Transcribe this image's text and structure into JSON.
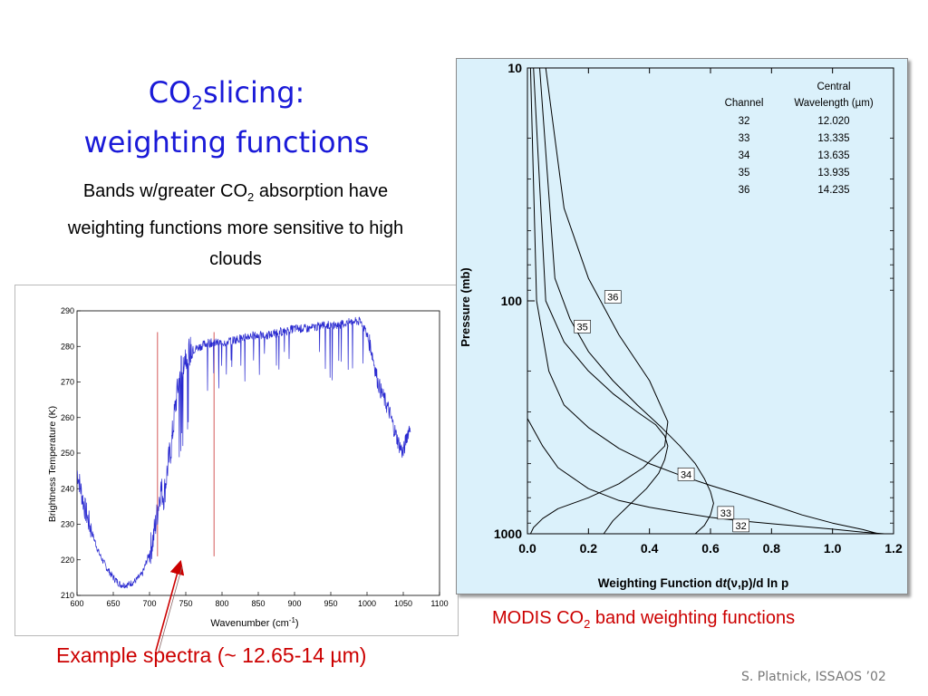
{
  "slide": {
    "title_line1_a": "CO",
    "title_line1_sub": "2",
    "title_line1_b": "slicing:",
    "title_line2": "weighting functions",
    "blurb_a": "Bands w/greater CO",
    "blurb_sub": "2",
    "blurb_b": " absorption have weighting functions more sensitive to high clouds",
    "caption_right_a": "MODIS CO",
    "caption_right_sub": "2",
    "caption_right_b": " band weighting functions",
    "caption_left": "Example spectra (~ 12.65-14 µm)",
    "credit": "S. Platnick, ISSAOS ’02",
    "colors": {
      "title": "#1a1ad8",
      "caption": "#cc0000",
      "spectrum": "#2a2ad0",
      "marker": "#d45a5a",
      "panel_bg": "#dbf1fb"
    }
  },
  "chart_data": [
    {
      "type": "line",
      "title": "",
      "xlabel": "Wavenumber (cm",
      "xlabel_sup": "-1",
      "xlabel_end": ")",
      "ylabel": "Brightness Temperature (K)",
      "xlim": [
        600,
        1100
      ],
      "ylim": [
        210,
        290
      ],
      "x_ticks": [
        600,
        650,
        700,
        750,
        800,
        850,
        900,
        950,
        1000,
        1050,
        1100
      ],
      "y_ticks": [
        210,
        220,
        230,
        240,
        250,
        260,
        270,
        280,
        290
      ],
      "grid": false,
      "series": [
        {
          "x": [
            600,
            605,
            610,
            620,
            630,
            640,
            650,
            660,
            670,
            680,
            690,
            700,
            705,
            710,
            715,
            720,
            725,
            730,
            735,
            740,
            745,
            750,
            760,
            770,
            780,
            800,
            820,
            840,
            860,
            880,
            900,
            920,
            940,
            960,
            980,
            990,
            995,
            1000,
            1005,
            1010,
            1015,
            1020,
            1030,
            1040,
            1045,
            1050,
            1055,
            1060
          ],
          "y": [
            245,
            240,
            235,
            228,
            222,
            218,
            215,
            213,
            213,
            214,
            216,
            222,
            226,
            232,
            240,
            238,
            246,
            252,
            262,
            270,
            275,
            278,
            279,
            280,
            281,
            281,
            282,
            283,
            283,
            284,
            285,
            285,
            286,
            286,
            287,
            287,
            286,
            283,
            280,
            275,
            270,
            267,
            262,
            255,
            252,
            250,
            255,
            258
          ]
        }
      ],
      "markers_x": [
        711,
        789
      ],
      "spectrum_color": "#2a2ad0",
      "marker_color": "#d45a5a"
    },
    {
      "type": "line",
      "title": "",
      "xlabel": "Weighting Function d",
      "xlabel_t": "t",
      "xlabel_nu": "ν",
      "xlabel_end": ",p)/d ln p",
      "ylabel": "Pressure (mb)",
      "xlim": [
        0.0,
        1.2
      ],
      "ylim": [
        1000,
        10
      ],
      "y_scale": "log",
      "x_ticks": [
        "0.0",
        "0.2",
        "0.4",
        "0.6",
        "0.8",
        "1.0",
        "1.2"
      ],
      "y_ticks": [
        10,
        100,
        1000
      ],
      "grid": false,
      "table": {
        "header_central": "Central",
        "header_channel": "Channel",
        "header_wavelength": "Wavelength (µm)",
        "rows": [
          {
            "channel": "32",
            "wavelength": "12.020"
          },
          {
            "channel": "33",
            "wavelength": "13.335"
          },
          {
            "channel": "34",
            "wavelength": "13.635"
          },
          {
            "channel": "35",
            "wavelength": "13.935"
          },
          {
            "channel": "36",
            "wavelength": "14.235"
          }
        ]
      },
      "series": [
        {
          "name": "32",
          "label_at": [
            0.7,
            930
          ],
          "x": [
            0.0,
            0.05,
            0.1,
            0.2,
            0.3,
            0.4,
            0.5,
            0.6,
            0.7,
            0.8,
            0.9,
            1.0,
            1.1,
            1.17
          ],
          "y": [
            320,
            420,
            520,
            640,
            720,
            770,
            810,
            850,
            880,
            905,
            930,
            955,
            985,
            1000
          ]
        },
        {
          "name": "33",
          "label_at": [
            0.65,
            820
          ],
          "x": [
            0.01,
            0.03,
            0.07,
            0.12,
            0.2,
            0.3,
            0.4,
            0.5,
            0.6,
            0.7,
            0.8,
            0.9,
            1.0,
            1.1,
            1.15
          ],
          "y": [
            10,
            100,
            200,
            280,
            350,
            430,
            500,
            560,
            620,
            680,
            750,
            830,
            900,
            960,
            1000
          ]
        },
        {
          "name": "34",
          "label_at": [
            0.52,
            560
          ],
          "x": [
            0.02,
            0.06,
            0.12,
            0.2,
            0.28,
            0.36,
            0.42,
            0.45,
            0.46,
            0.45,
            0.43,
            0.39,
            0.33,
            0.28,
            0.25
          ],
          "y": [
            10,
            100,
            150,
            200,
            250,
            300,
            340,
            380,
            420,
            480,
            550,
            640,
            760,
            880,
            1000
          ]
        },
        {
          "name": "35",
          "label_at": [
            0.18,
            130
          ],
          "x": [
            0.04,
            0.09,
            0.14,
            0.2,
            0.28,
            0.36,
            0.44,
            0.5,
            0.55,
            0.58,
            0.6,
            0.61,
            0.6,
            0.58,
            0.55
          ],
          "y": [
            10,
            80,
            120,
            165,
            220,
            280,
            350,
            420,
            500,
            580,
            660,
            740,
            830,
            920,
            1000
          ]
        },
        {
          "name": "36",
          "label_at": [
            0.28,
            97
          ],
          "x": [
            0.06,
            0.12,
            0.2,
            0.3,
            0.4,
            0.46,
            0.45,
            0.38,
            0.3,
            0.2,
            0.1,
            0.05,
            0.02,
            0.01
          ],
          "y": [
            10,
            40,
            80,
            140,
            220,
            330,
            420,
            520,
            610,
            700,
            780,
            860,
            940,
            1000
          ]
        }
      ]
    }
  ]
}
